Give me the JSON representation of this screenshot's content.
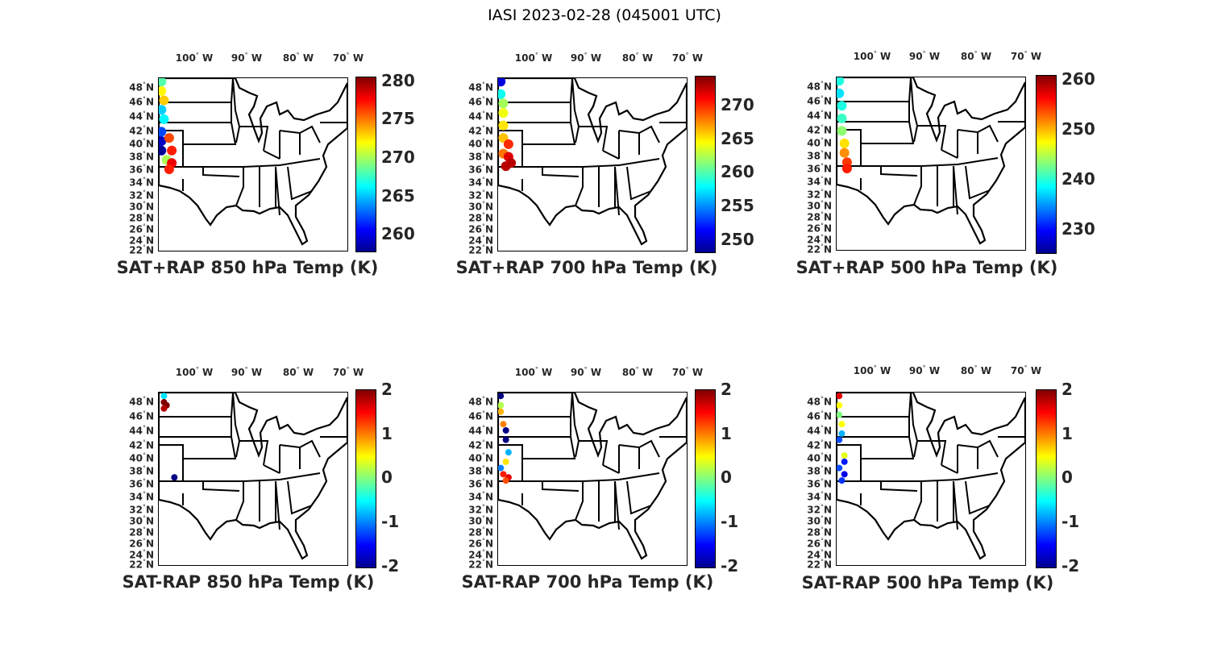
{
  "suptitle": "IASI 2023-02-28 (045001 UTC)",
  "lon_labels": [
    "100",
    "90",
    "80",
    "70"
  ],
  "lon_suffix": "W",
  "lon_values": [
    -100,
    -90,
    -80,
    -70
  ],
  "lat_labels": [
    "48",
    "46",
    "44",
    "42",
    "40",
    "38",
    "36",
    "34",
    "32",
    "30",
    "28",
    "26",
    "24",
    "22"
  ],
  "lat_suffix": "N",
  "colors": {
    "axis_text": "#262626",
    "map_line": "#000000"
  },
  "panels": [
    {
      "title": "SAT+RAP 850 hPa Temp (K)",
      "clim": [
        257.5,
        280.5
      ],
      "ticks": [
        "280",
        "275",
        "270",
        "265",
        "260"
      ],
      "tick_values": [
        280,
        275,
        270,
        265,
        260
      ],
      "points": [
        [
          -106.5,
          49,
          268
        ],
        [
          -106.5,
          47.5,
          272
        ],
        [
          -106,
          46,
          273
        ],
        [
          -106.5,
          44.5,
          265
        ],
        [
          -106,
          43,
          266
        ],
        [
          -106.5,
          41,
          262
        ],
        [
          -106.5,
          39.5,
          259
        ],
        [
          -105,
          40,
          276
        ],
        [
          -106.5,
          38,
          258
        ],
        [
          -104.5,
          38,
          277
        ],
        [
          -105.5,
          36.5,
          270
        ],
        [
          -104.5,
          36,
          278
        ],
        [
          -105,
          35,
          277
        ]
      ]
    },
    {
      "title": "SAT+RAP 700 hPa Temp (K)",
      "clim": [
        247.5,
        274.5
      ],
      "ticks": [
        "270",
        "265",
        "260",
        "255",
        "250"
      ],
      "tick_values": [
        270,
        265,
        260,
        255,
        250
      ],
      "points": [
        [
          -106.5,
          49,
          250
        ],
        [
          -106.5,
          47,
          258
        ],
        [
          -106,
          45.5,
          262
        ],
        [
          -106,
          44,
          264
        ],
        [
          -106,
          42,
          265
        ],
        [
          -106,
          40,
          266
        ],
        [
          -105,
          39,
          270
        ],
        [
          -106,
          37.5,
          268
        ],
        [
          -105,
          37,
          272
        ],
        [
          -104.5,
          36,
          273
        ],
        [
          -105.5,
          35.5,
          273
        ]
      ]
    },
    {
      "title": "SAT+RAP 500 hPa Temp (K)",
      "clim": [
        225.5,
        261.5
      ],
      "ticks": [
        "260",
        "250",
        "240",
        "230"
      ],
      "tick_values": [
        260,
        250,
        240,
        230
      ],
      "points": [
        [
          -106.5,
          49,
          240
        ],
        [
          -106.5,
          47,
          238
        ],
        [
          -106,
          45,
          240
        ],
        [
          -106,
          43,
          241
        ],
        [
          -106,
          41,
          244
        ],
        [
          -105.5,
          39,
          249
        ],
        [
          -105.5,
          37.5,
          252
        ],
        [
          -105,
          36,
          255
        ],
        [
          -105,
          35,
          256
        ]
      ]
    },
    {
      "title": "SAT-RAP 850 hPa Temp (K)",
      "clim": [
        -2,
        2
      ],
      "ticks": [
        "2",
        "1",
        "0",
        "-1",
        "-2"
      ],
      "tick_values": [
        2,
        1,
        0,
        -1,
        -2
      ],
      "points": [
        [
          -106,
          49,
          -0.6
        ],
        [
          -106,
          48,
          2
        ],
        [
          -105.5,
          47.5,
          2
        ],
        [
          -106,
          47,
          1.8
        ],
        [
          -104,
          36,
          -2
        ]
      ]
    },
    {
      "title": "SAT-RAP 700 hPa Temp (K)",
      "clim": [
        -2,
        2
      ],
      "ticks": [
        "2",
        "1",
        "0",
        "-1",
        "-2"
      ],
      "tick_values": [
        2,
        1,
        0,
        -1,
        -2
      ],
      "points": [
        [
          -106.5,
          49,
          -2
        ],
        [
          -106.5,
          47.5,
          0.2
        ],
        [
          -106.5,
          46.5,
          0.8
        ],
        [
          -106,
          44.5,
          1
        ],
        [
          -105.5,
          43.5,
          -2
        ],
        [
          -105.5,
          42,
          -2
        ],
        [
          -105,
          40,
          -0.8
        ],
        [
          -105.5,
          38.5,
          0.6
        ],
        [
          -106.5,
          37.5,
          -1
        ],
        [
          -106,
          36.5,
          1.4
        ],
        [
          -105,
          36,
          1.6
        ],
        [
          -105.5,
          35.5,
          1.2
        ]
      ]
    },
    {
      "title": "SAT-RAP 500 hPa Temp (K)",
      "clim": [
        -2,
        2
      ],
      "ticks": [
        "2",
        "1",
        "0",
        "-1",
        "-2"
      ],
      "tick_values": [
        2,
        1,
        0,
        -1,
        -2
      ],
      "points": [
        [
          -106.5,
          49,
          1.6
        ],
        [
          -106.5,
          47.5,
          0.5
        ],
        [
          -106.5,
          46,
          0
        ],
        [
          -106,
          44.5,
          0.5
        ],
        [
          -106,
          43,
          -0.8
        ],
        [
          -106.5,
          42,
          -1.2
        ],
        [
          -105.5,
          39.5,
          0.4
        ],
        [
          -105.5,
          38.5,
          -1.4
        ],
        [
          -106.5,
          37.5,
          -1.2
        ],
        [
          -105.5,
          36.5,
          -1.6
        ],
        [
          -106,
          35.5,
          -1.3
        ]
      ]
    }
  ]
}
